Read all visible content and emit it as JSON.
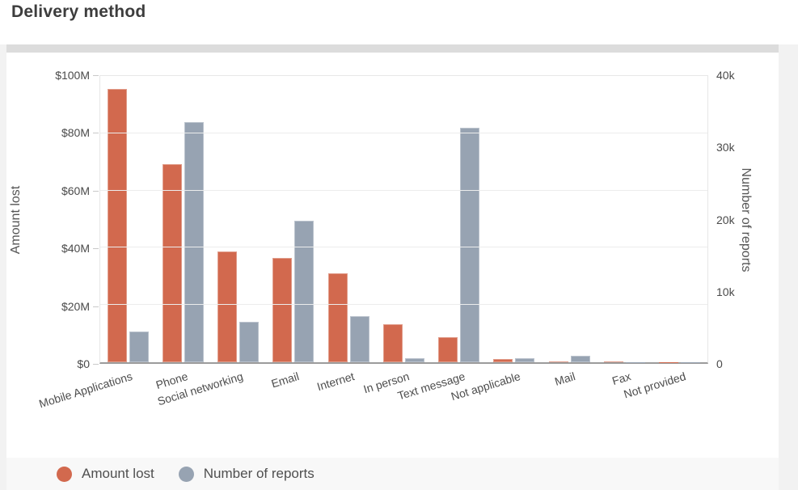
{
  "title": "Delivery method",
  "chart_data": {
    "type": "bar",
    "title": "Delivery method",
    "categories": [
      "Mobile Applications",
      "Phone",
      "Social networking",
      "Email",
      "Internet",
      "In person",
      "Text message",
      "Not applicable",
      "Mail",
      "Fax",
      "Not provided"
    ],
    "series": [
      {
        "name": "Amount lost",
        "axis": "left",
        "unit": "$M",
        "color": "#d2694e",
        "values": [
          95.2,
          69.0,
          38.6,
          36.3,
          31.0,
          13.3,
          8.8,
          1.0,
          0.4,
          0.3,
          0.05
        ]
      },
      {
        "name": "Number of reports",
        "axis": "right",
        "unit": "k",
        "color": "#97a3b2",
        "values": [
          4.3,
          33.5,
          5.6,
          19.7,
          6.4,
          0.6,
          32.7,
          0.6,
          0.9,
          0.05,
          0.02
        ]
      }
    ],
    "left_axis": {
      "title": "Amount lost",
      "ticks": [
        "$0",
        "$20M",
        "$40M",
        "$60M",
        "$80M",
        "$100M"
      ],
      "tick_values": [
        0,
        20,
        40,
        60,
        80,
        100
      ],
      "max": 100
    },
    "right_axis": {
      "title": "Number of reports",
      "ticks": [
        "0",
        "10k",
        "20k",
        "30k",
        "40k"
      ],
      "tick_values": [
        0,
        10,
        20,
        30,
        40
      ],
      "max": 40
    },
    "grid": true,
    "legend_position": "bottom"
  },
  "legend": {
    "items": [
      {
        "label": "Amount lost",
        "color": "#d2694e"
      },
      {
        "label": "Number of reports",
        "color": "#97a3b2"
      }
    ]
  }
}
